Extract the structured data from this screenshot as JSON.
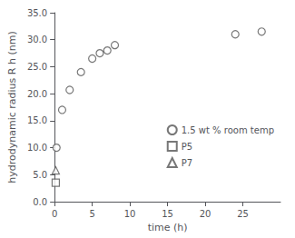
{
  "chart_data": {
    "type": "scatter",
    "xlabel": "time (h)",
    "ylabel": "hydrodynamic radius R h (nm)",
    "xlim": [
      0,
      30
    ],
    "ylim": [
      0.0,
      35.0
    ],
    "xticks": [
      0,
      5,
      10,
      15,
      20,
      25
    ],
    "yticks": [
      {
        "value": 0.0,
        "label": "0.0"
      },
      {
        "value": 5.0,
        "label": "5.0"
      },
      {
        "value": 10.0,
        "label": "10.0"
      },
      {
        "value": 15.0,
        "label": "15.0"
      },
      {
        "value": 20.0,
        "label": "20.0"
      },
      {
        "value": 25.0,
        "label": "25.0"
      },
      {
        "value": 30.0,
        "label": "30.0"
      },
      {
        "value": 35.0,
        "label": "35.0"
      }
    ],
    "grid": false,
    "legend": "lower right",
    "series": [
      {
        "name": "1.5 wt % room temp",
        "marker": "circle",
        "color": "#555555",
        "x": [
          0.25,
          1.0,
          2.0,
          3.5,
          5.0,
          6.0,
          7.0,
          8.0,
          24.0,
          27.5
        ],
        "values": [
          10.0,
          17.0,
          20.7,
          24.0,
          26.5,
          27.5,
          28.0,
          29.0,
          31.0,
          31.5
        ]
      },
      {
        "name": "P5",
        "marker": "square",
        "color": "#555555",
        "x": [
          0.15
        ],
        "values": [
          3.5
        ]
      },
      {
        "name": "P7",
        "marker": "triangle",
        "color": "#555555",
        "x": [
          0.15
        ],
        "values": [
          5.8
        ]
      }
    ]
  }
}
